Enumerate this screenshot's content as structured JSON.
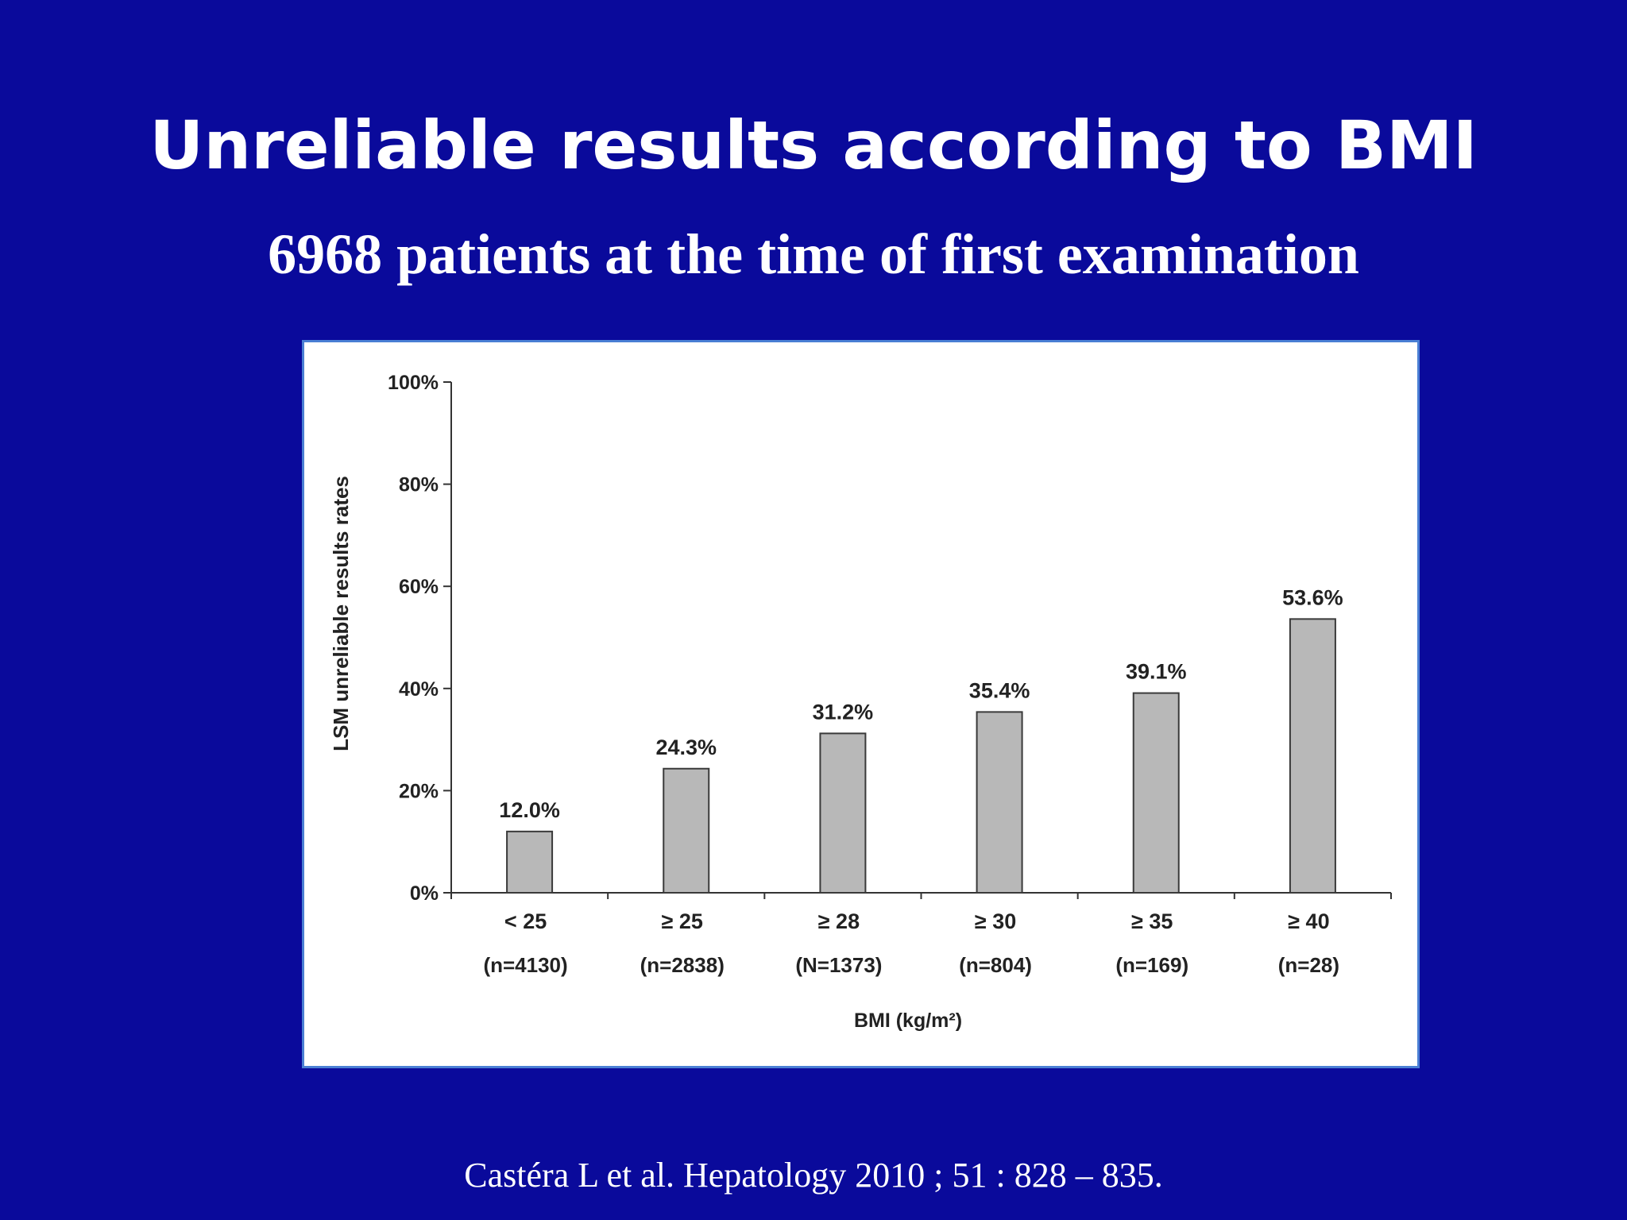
{
  "slide": {
    "title": "Unreliable results according to BMI",
    "subtitle": "6968 patients at the time of first examination",
    "citation": "Castéra L et al.  Hepatology 2010 ; 51 : 828 – 835.",
    "background_color": "#0a0a9b",
    "panel_border_color": "#4a7fd4"
  },
  "chart_data": {
    "type": "bar",
    "categories": [
      "< 25",
      "≥  25",
      "≥ 28",
      "≥ 30",
      "≥ 35",
      "≥ 40"
    ],
    "category_counts": [
      "(n=4130)",
      "(n=2838)",
      "(N=1373)",
      "(n=804)",
      "(n=169)",
      "(n=28)"
    ],
    "values": [
      12.0,
      24.3,
      31.2,
      35.4,
      39.1,
      53.6
    ],
    "value_labels": [
      "12.0%",
      "24.3%",
      "31.2%",
      "35.4%",
      "39.1%",
      "53.6%"
    ],
    "xlabel": "BMI (kg/m²)",
    "ylabel": "LSM unreliable results rates",
    "ylim": [
      0,
      100
    ],
    "yticks": [
      0,
      20,
      40,
      60,
      80,
      100
    ],
    "ytick_labels": [
      "0%",
      "20%",
      "40%",
      "60%",
      "80%",
      "100%"
    ],
    "grid": false,
    "bar_color": "#b8b8b8",
    "bar_edge_color": "#3a3a3a"
  }
}
